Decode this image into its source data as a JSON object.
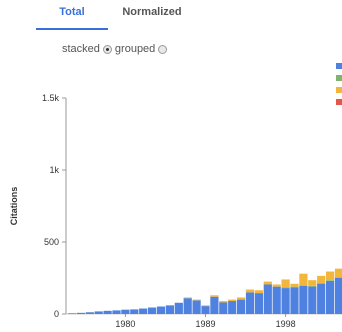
{
  "tabs": [
    {
      "label": "Total",
      "active": true
    },
    {
      "label": "Normalized",
      "active": false
    }
  ],
  "mode": {
    "stacked_label": "stacked",
    "grouped_label": "grouped",
    "selected": "stacked"
  },
  "legend_colors": [
    "#4f81e0",
    "#7fb470",
    "#f2b63c",
    "#e2574c"
  ],
  "chart_data": {
    "type": "bar",
    "stacked": true,
    "xlabel": "",
    "ylabel": "Citations",
    "ylim": [
      0,
      1500
    ],
    "yticks": [
      {
        "value": 0,
        "label": "0"
      },
      {
        "value": 500,
        "label": "500"
      },
      {
        "value": 1000,
        "label": "1k"
      },
      {
        "value": 1500,
        "label": "1.5k"
      }
    ],
    "xtick_labels": [
      "1980",
      "1989",
      "1998"
    ],
    "categories": [
      "1974",
      "1975",
      "1976",
      "1977",
      "1978",
      "1979",
      "1980",
      "1981",
      "1982",
      "1983",
      "1984",
      "1985",
      "1986",
      "1987",
      "1988",
      "1989",
      "1990",
      "1991",
      "1992",
      "1993",
      "1994",
      "1995",
      "1996",
      "1997",
      "1998",
      "1999",
      "2000",
      "2001",
      "2002",
      "2003",
      "2004"
    ],
    "series": [
      {
        "color": "#4f81e0",
        "values": [
          5,
          8,
          12,
          18,
          22,
          25,
          30,
          32,
          38,
          45,
          52,
          60,
          78,
          110,
          95,
          55,
          120,
          80,
          90,
          100,
          150,
          145,
          205,
          190,
          180,
          185,
          195,
          190,
          210,
          230,
          250
        ]
      },
      {
        "color": "#7fb470",
        "values": [
          0,
          0,
          0,
          0,
          0,
          0,
          0,
          0,
          0,
          0,
          0,
          0,
          0,
          0,
          0,
          0,
          0,
          0,
          0,
          0,
          0,
          0,
          0,
          0,
          5,
          5,
          5,
          5,
          5,
          5,
          5
        ]
      },
      {
        "color": "#f2b63c",
        "values": [
          0,
          0,
          0,
          0,
          0,
          0,
          0,
          0,
          0,
          0,
          0,
          0,
          0,
          5,
          5,
          5,
          10,
          10,
          10,
          15,
          20,
          20,
          20,
          15,
          55,
          20,
          80,
          40,
          50,
          60,
          60
        ]
      },
      {
        "color": "#e2574c",
        "values": [
          0,
          0,
          0,
          0,
          0,
          0,
          0,
          0,
          0,
          0,
          0,
          0,
          0,
          0,
          0,
          0,
          0,
          0,
          0,
          0,
          0,
          0,
          0,
          0,
          0,
          0,
          0,
          0,
          0,
          0,
          0
        ]
      }
    ]
  }
}
